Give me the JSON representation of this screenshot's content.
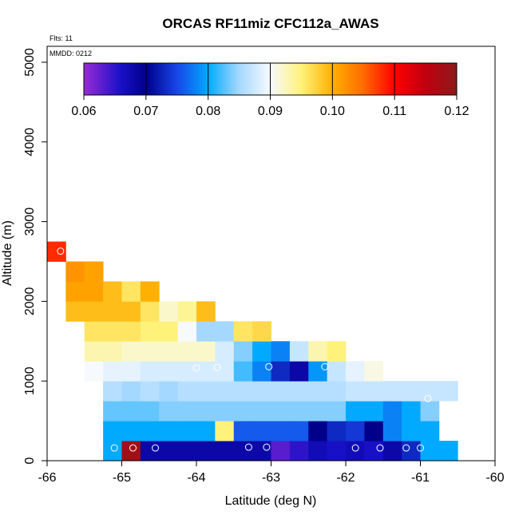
{
  "chart_data": {
    "type": "heatmap",
    "title": "ORCAS RF11miz CFC112a_AWAS",
    "annotations": {
      "flights": "Flts: 11",
      "date": "MMDD: 0212"
    },
    "xlabel": "Latitude (deg N)",
    "ylabel": "Altitude (m)",
    "xlim": [
      -66,
      -60
    ],
    "ylim": [
      0,
      5200
    ],
    "x_ticks": [
      -66,
      -65,
      -64,
      -63,
      -62,
      -61,
      -60
    ],
    "x_tick_labels": [
      "-66",
      "-65",
      "-64",
      "-63",
      "-62",
      "-61",
      "-60"
    ],
    "y_ticks": [
      0,
      1000,
      2000,
      3000,
      4000,
      5000
    ],
    "y_tick_labels": [
      "0",
      "1000",
      "2000",
      "3000",
      "4000",
      "5000"
    ],
    "colorbar": {
      "min": 0.06,
      "max": 0.12,
      "ticks": [
        0.06,
        0.07,
        0.08,
        0.09,
        0.1,
        0.11,
        0.12
      ],
      "tick_labels": [
        "0.06",
        "0.07",
        "0.08",
        "0.09",
        "0.10",
        "0.11",
        "0.12"
      ]
    },
    "bin_size": {
      "lat": 0.25,
      "alt": 250
    },
    "rows": [
      {
        "alt": 0,
        "lat_start": -65.25,
        "values": [
          0.08,
          0.118,
          0.068,
          0.068,
          0.068,
          0.068,
          0.068,
          0.068,
          0.068,
          0.063,
          0.065,
          0.067,
          0.066,
          0.067,
          0.066,
          0.068,
          0.073,
          0.08,
          0.08
        ]
      },
      {
        "alt": 250,
        "lat_start": -65.25,
        "values": [
          0.08,
          0.08,
          0.08,
          0.08,
          0.08,
          0.08,
          0.095,
          0.076,
          0.076,
          0.076,
          0.076,
          0.07,
          0.073,
          0.074,
          0.07,
          0.078,
          0.08,
          0.08
        ]
      },
      {
        "alt": 500,
        "lat_start": -65.25,
        "values": [
          0.083,
          0.083,
          0.083,
          0.084,
          0.084,
          0.084,
          0.084,
          0.084,
          0.084,
          0.084,
          0.084,
          0.084,
          0.084,
          0.08,
          0.08,
          0.078,
          0.08,
          0.084
        ]
      },
      {
        "alt": 750,
        "lat_start": -65.25,
        "values": [
          0.086,
          0.085,
          0.086,
          0.085,
          0.086,
          0.086,
          0.086,
          0.086,
          0.086,
          0.086,
          0.086,
          0.086,
          0.086,
          0.087,
          0.087,
          0.087,
          0.087,
          0.087,
          0.087
        ]
      },
      {
        "alt": 1000,
        "lat_start": -65.5,
        "values": [
          0.09,
          0.089,
          0.089,
          0.088,
          0.088,
          0.088,
          0.088,
          0.088,
          0.082,
          0.078,
          0.073,
          0.068,
          0.079,
          0.087,
          0.089,
          0.091
        ]
      },
      {
        "alt": 1250,
        "lat_start": -65.5,
        "values": [
          0.093,
          0.093,
          0.092,
          0.092,
          0.092,
          0.092,
          0.092,
          0.088,
          0.084,
          0.08,
          0.078,
          0.087,
          0.093,
          0.095
        ]
      },
      {
        "alt": 1500,
        "lat_start": -65.5,
        "values": [
          0.096,
          0.096,
          0.096,
          0.095,
          0.095,
          0.09,
          0.085,
          0.085,
          0.096,
          0.097
        ]
      },
      {
        "alt": 1750,
        "lat_start": -65.75,
        "values": [
          0.099,
          0.099,
          0.099,
          0.099,
          0.096,
          0.092,
          0.094,
          0.099
        ]
      },
      {
        "alt": 2000,
        "lat_start": -65.75,
        "values": [
          0.101,
          0.101,
          0.099,
          0.096,
          0.1
        ]
      },
      {
        "alt": 2250,
        "lat_start": -65.75,
        "values": [
          0.102,
          0.101
        ]
      },
      {
        "alt": 2500,
        "lat_start": -66.0,
        "values": [
          0.108
        ]
      }
    ],
    "sample_points": [
      {
        "lat": -65.1,
        "alt": 160
      },
      {
        "lat": -64.85,
        "alt": 160
      },
      {
        "lat": -64.55,
        "alt": 160
      },
      {
        "lat": -63.3,
        "alt": 170
      },
      {
        "lat": -63.06,
        "alt": 170
      },
      {
        "lat": -61.87,
        "alt": 160
      },
      {
        "lat": -61.54,
        "alt": 160
      },
      {
        "lat": -61.19,
        "alt": 160
      },
      {
        "lat": -61.0,
        "alt": 160
      },
      {
        "lat": -63.03,
        "alt": 1180
      },
      {
        "lat": -62.28,
        "alt": 1180
      },
      {
        "lat": -63.72,
        "alt": 1170
      },
      {
        "lat": -64.0,
        "alt": 1165
      },
      {
        "lat": -60.9,
        "alt": 780
      },
      {
        "lat": -65.82,
        "alt": 2630
      }
    ]
  }
}
